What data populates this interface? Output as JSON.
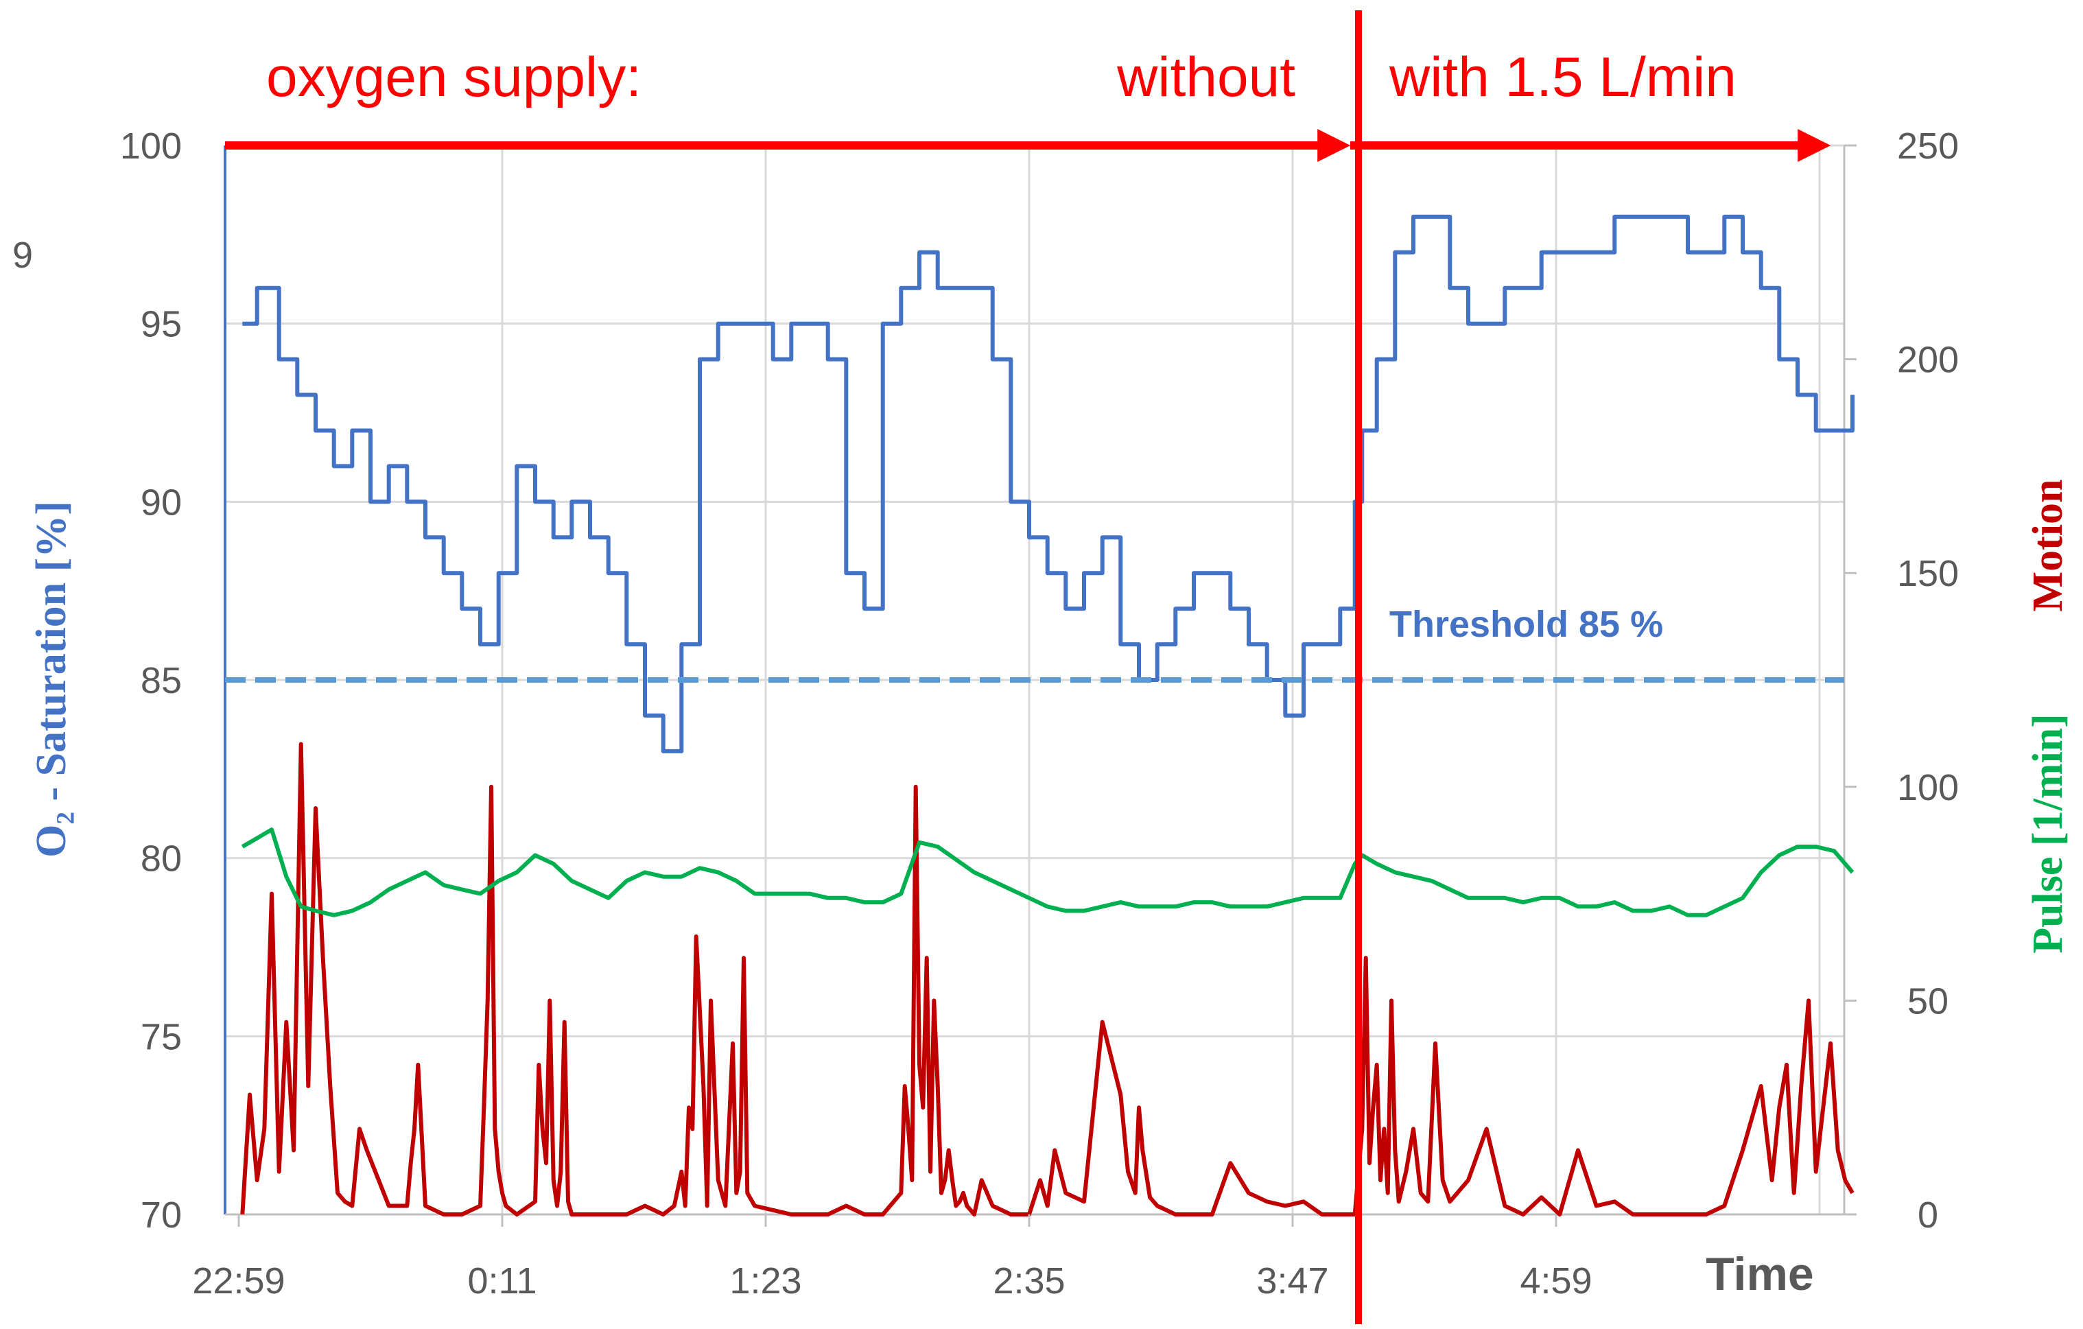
{
  "chart_data": {
    "type": "line",
    "title": "",
    "annotations": {
      "oxygen_label": "oxygen supply:",
      "without_label": "without",
      "with_label": "with 1.5 L/min",
      "threshold_label": "Threshold 85  %",
      "stray_label": "9"
    },
    "x_axis": {
      "label": "Time",
      "ticks": [
        "22:59",
        "0:11",
        "1:23",
        "2:35",
        "3:47",
        "4:59"
      ],
      "range": [
        "22:59",
        "6:23"
      ]
    },
    "y_left": {
      "label": "O₂ - Saturation [%]",
      "ticks": [
        100,
        95,
        90,
        85,
        80,
        75,
        70
      ],
      "range": [
        70,
        100
      ]
    },
    "y_right": {
      "label_pulse": "Pulse [1/min]",
      "label_motion": "Motion",
      "ticks": [
        250,
        200,
        150,
        100,
        50,
        0
      ],
      "range": [
        0,
        250
      ]
    },
    "oxygen_switch_time": "4:05",
    "threshold": 85,
    "grid": true,
    "series": [
      {
        "name": "O₂ - Saturation",
        "axis": "left",
        "color": "#4472c4",
        "times": [
          "23:00",
          "23:04",
          "23:10",
          "23:15",
          "23:20",
          "23:25",
          "23:30",
          "23:35",
          "23:40",
          "23:45",
          "23:50",
          "23:55",
          "0:00",
          "0:05",
          "0:10",
          "0:15",
          "0:20",
          "0:25",
          "0:30",
          "0:35",
          "0:40",
          "0:45",
          "0:50",
          "0:55",
          "1:00",
          "1:05",
          "1:10",
          "1:15",
          "1:20",
          "1:25",
          "1:30",
          "1:35",
          "1:40",
          "1:45",
          "1:50",
          "1:55",
          "2:00",
          "2:05",
          "2:10",
          "2:15",
          "2:20",
          "2:25",
          "2:30",
          "2:35",
          "2:40",
          "2:45",
          "2:50",
          "2:55",
          "3:00",
          "3:05",
          "3:10",
          "3:15",
          "3:20",
          "3:25",
          "3:30",
          "3:35",
          "3:40",
          "3:45",
          "3:50",
          "3:55",
          "4:00",
          "4:04",
          "4:06",
          "4:10",
          "4:15",
          "4:20",
          "4:25",
          "4:30",
          "4:35",
          "4:40",
          "4:45",
          "4:50",
          "4:55",
          "5:00",
          "5:05",
          "5:10",
          "5:15",
          "5:20",
          "5:25",
          "5:30",
          "5:35",
          "5:40",
          "5:45",
          "5:50",
          "5:55",
          "6:00",
          "6:05",
          "6:10",
          "6:15",
          "6:20"
        ],
        "values": [
          95,
          96,
          94,
          93,
          92,
          91,
          92,
          90,
          91,
          90,
          89,
          88,
          87,
          86,
          88,
          91,
          90,
          89,
          90,
          89,
          88,
          86,
          84,
          83,
          86,
          94,
          95,
          95,
          95,
          94,
          95,
          95,
          94,
          88,
          87,
          95,
          96,
          97,
          96,
          96,
          96,
          94,
          90,
          89,
          88,
          87,
          88,
          89,
          86,
          85,
          86,
          87,
          88,
          88,
          87,
          86,
          85,
          84,
          86,
          86,
          87,
          90,
          92,
          94,
          97,
          98,
          98,
          96,
          95,
          95,
          96,
          96,
          97,
          97,
          97,
          97,
          98,
          98,
          98,
          98,
          97,
          97,
          98,
          97,
          96,
          94,
          93,
          92,
          92,
          93
        ]
      },
      {
        "name": "Pulse [1/min]",
        "axis": "right",
        "color": "#00b050",
        "times": [
          "23:00",
          "23:04",
          "23:08",
          "23:12",
          "23:16",
          "23:20",
          "23:25",
          "23:30",
          "23:35",
          "23:40",
          "23:45",
          "23:50",
          "23:55",
          "0:00",
          "0:05",
          "0:10",
          "0:15",
          "0:20",
          "0:25",
          "0:30",
          "0:35",
          "0:40",
          "0:45",
          "0:50",
          "0:55",
          "1:00",
          "1:05",
          "1:10",
          "1:15",
          "1:20",
          "1:25",
          "1:30",
          "1:35",
          "1:40",
          "1:45",
          "1:50",
          "1:55",
          "2:00",
          "2:05",
          "2:10",
          "2:15",
          "2:20",
          "2:25",
          "2:30",
          "2:35",
          "2:40",
          "2:45",
          "2:50",
          "2:55",
          "3:00",
          "3:05",
          "3:10",
          "3:15",
          "3:20",
          "3:25",
          "3:30",
          "3:35",
          "3:40",
          "3:45",
          "3:50",
          "3:55",
          "4:00",
          "4:04",
          "4:06",
          "4:10",
          "4:15",
          "4:20",
          "4:25",
          "4:30",
          "4:35",
          "4:40",
          "4:45",
          "4:50",
          "4:55",
          "5:00",
          "5:05",
          "5:10",
          "5:15",
          "5:20",
          "5:25",
          "5:30",
          "5:35",
          "5:40",
          "5:45",
          "5:50",
          "5:55",
          "6:00",
          "6:05",
          "6:10",
          "6:15",
          "6:20"
        ],
        "values": [
          86,
          88,
          90,
          79,
          72,
          71,
          70,
          71,
          73,
          76,
          78,
          80,
          77,
          76,
          75,
          78,
          80,
          84,
          82,
          78,
          76,
          74,
          78,
          80,
          79,
          79,
          81,
          80,
          78,
          75,
          75,
          75,
          75,
          74,
          74,
          73,
          73,
          75,
          87,
          86,
          83,
          80,
          78,
          76,
          74,
          72,
          71,
          71,
          72,
          73,
          72,
          72,
          72,
          73,
          73,
          72,
          72,
          72,
          73,
          74,
          74,
          74,
          82,
          84,
          82,
          80,
          79,
          78,
          76,
          74,
          74,
          74,
          73,
          74,
          74,
          72,
          72,
          73,
          71,
          71,
          72,
          70,
          70,
          72,
          74,
          80,
          84,
          86,
          86,
          85,
          80
        ]
      },
      {
        "name": "Motion",
        "axis": "right",
        "color": "#c00000",
        "times": [
          "23:00",
          "23:02",
          "23:04",
          "23:06",
          "23:08",
          "23:10",
          "23:12",
          "23:14",
          "23:16",
          "23:18",
          "23:20",
          "23:22",
          "23:24",
          "23:26",
          "23:28",
          "23:30",
          "23:32",
          "23:34",
          "23:40",
          "23:45",
          "23:46",
          "23:47",
          "23:48",
          "23:50",
          "23:55",
          "0:00",
          "0:05",
          "0:06",
          "0:07",
          "0:08",
          "0:09",
          "0:10",
          "0:11",
          "0:12",
          "0:15",
          "0:20",
          "0:21",
          "0:22",
          "0:23",
          "0:24",
          "0:25",
          "0:26",
          "0:27",
          "0:28",
          "0:29",
          "0:30",
          "0:35",
          "0:40",
          "0:45",
          "0:50",
          "0:55",
          "0:58",
          "1:00",
          "1:01",
          "1:02",
          "1:03",
          "1:04",
          "1:06",
          "1:07",
          "1:08",
          "1:10",
          "1:12",
          "1:14",
          "1:15",
          "1:16",
          "1:17",
          "1:18",
          "1:20",
          "1:25",
          "1:30",
          "1:35",
          "1:40",
          "1:45",
          "1:50",
          "1:55",
          "2:00",
          "2:01",
          "2:02",
          "2:03",
          "2:04",
          "2:05",
          "2:06",
          "2:07",
          "2:08",
          "2:09",
          "2:10",
          "2:11",
          "2:12",
          "2:13",
          "2:14",
          "2:15",
          "2:16",
          "2:17",
          "2:18",
          "2:20",
          "2:22",
          "2:25",
          "2:30",
          "2:35",
          "2:38",
          "2:40",
          "2:42",
          "2:45",
          "2:50",
          "2:55",
          "3:00",
          "3:02",
          "3:04",
          "3:05",
          "3:06",
          "3:08",
          "3:10",
          "3:15",
          "3:20",
          "3:25",
          "3:30",
          "3:35",
          "3:40",
          "3:45",
          "3:50",
          "3:55",
          "4:00",
          "4:04",
          "4:06",
          "4:07",
          "4:08",
          "4:09",
          "4:10",
          "4:11",
          "4:12",
          "4:13",
          "4:14",
          "4:15",
          "4:16",
          "4:18",
          "4:20",
          "4:22",
          "4:24",
          "4:26",
          "4:28",
          "4:30",
          "4:32",
          "4:35",
          "4:40",
          "4:45",
          "4:50",
          "4:55",
          "5:00",
          "5:05",
          "5:10",
          "5:15",
          "5:20",
          "5:25",
          "5:30",
          "5:35",
          "5:40",
          "5:45",
          "5:50",
          "5:55",
          "5:58",
          "6:00",
          "6:02",
          "6:04",
          "6:06",
          "6:08",
          "6:10",
          "6:12",
          "6:14",
          "6:16",
          "6:18",
          "6:20"
        ],
        "values": [
          0,
          28,
          8,
          20,
          75,
          10,
          45,
          15,
          110,
          30,
          95,
          60,
          30,
          5,
          3,
          2,
          20,
          15,
          2,
          2,
          12,
          20,
          35,
          2,
          0,
          0,
          2,
          25,
          50,
          100,
          20,
          10,
          5,
          2,
          0,
          3,
          35,
          20,
          12,
          50,
          8,
          2,
          10,
          45,
          3,
          0,
          0,
          0,
          0,
          2,
          0,
          2,
          10,
          2,
          25,
          20,
          65,
          30,
          2,
          50,
          8,
          2,
          40,
          5,
          10,
          60,
          5,
          2,
          1,
          0,
          0,
          0,
          2,
          0,
          0,
          5,
          30,
          20,
          8,
          100,
          35,
          25,
          60,
          10,
          50,
          30,
          5,
          8,
          15,
          8,
          2,
          3,
          5,
          2,
          0,
          8,
          2,
          0,
          0,
          8,
          2,
          15,
          5,
          3,
          45,
          28,
          10,
          5,
          25,
          15,
          4,
          2,
          0,
          0,
          0,
          12,
          5,
          3,
          2,
          3,
          0,
          0,
          0,
          20,
          60,
          12,
          25,
          35,
          8,
          20,
          5,
          50,
          15,
          3,
          10,
          20,
          5,
          3,
          40,
          8,
          3,
          5,
          8,
          20,
          2,
          0,
          4,
          0,
          15,
          2,
          3,
          0,
          0,
          0,
          0,
          0,
          2,
          15,
          30,
          8,
          25,
          35,
          5,
          30,
          50,
          10,
          25,
          40,
          15,
          8,
          5
        ]
      }
    ]
  }
}
